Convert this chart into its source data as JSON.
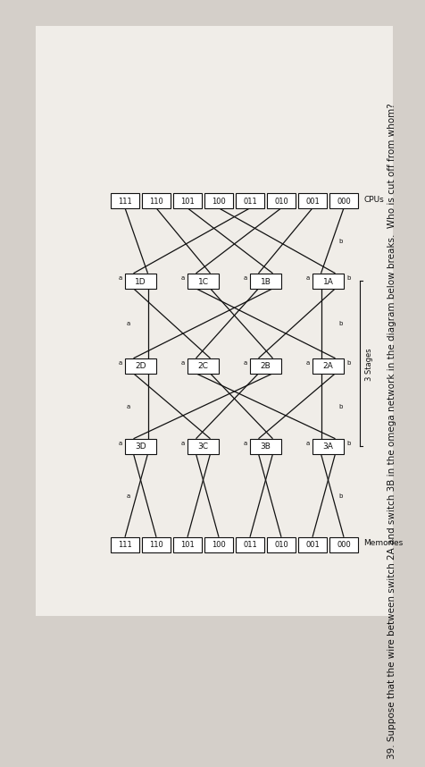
{
  "title_text": "39. Suppose that the wire between switch 2A and switch 3B in the omega network in the diagram below breaks.  Who is cut off from whom?",
  "bg_color": "#d4cfc9",
  "paper_color": "#f0ede8",
  "cpu_labels_order": [
    "000",
    "001",
    "010",
    "011",
    "100",
    "101",
    "110",
    "111"
  ],
  "mem_labels_order": [
    "000",
    "001",
    "010",
    "011",
    "100",
    "101",
    "110",
    "111"
  ],
  "stage1_labels": [
    "1A",
    "1B",
    "1C",
    "1D"
  ],
  "stage2_labels": [
    "2A",
    "2B",
    "2C",
    "2D"
  ],
  "stage3_labels": [
    "3A",
    "3B",
    "3C",
    "3D"
  ],
  "line_color": "#111111",
  "box_fc": "#ffffff",
  "box_ec": "#111111",
  "text_color": "#111111",
  "lw": 0.9
}
